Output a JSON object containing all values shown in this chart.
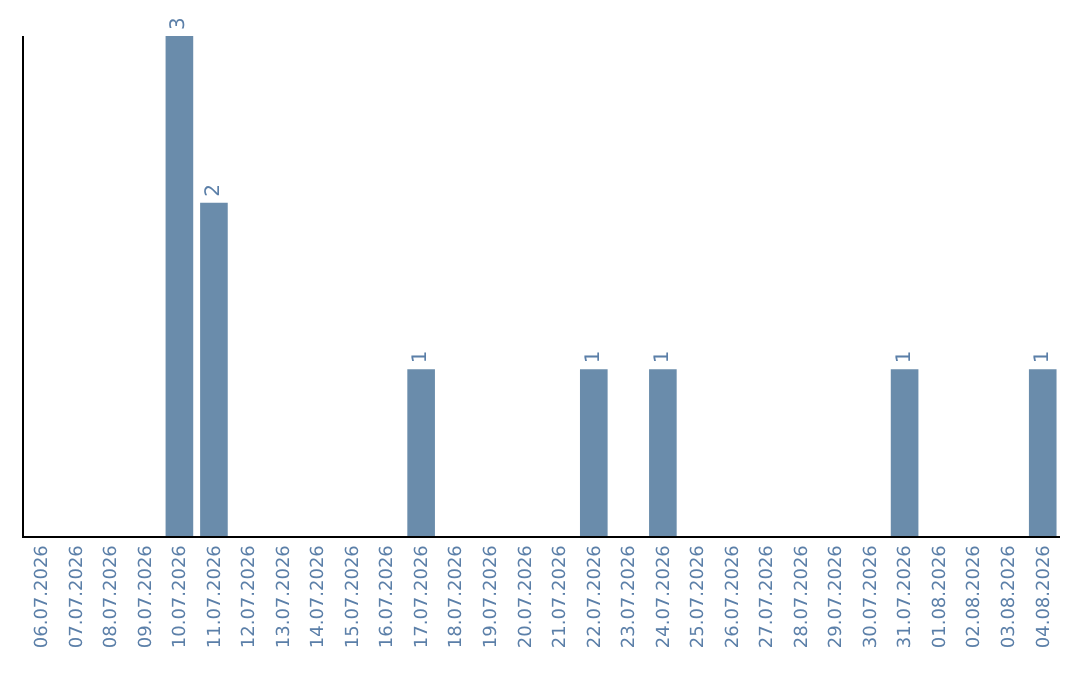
{
  "chart_data": {
    "type": "bar",
    "categories": [
      "06.07.2026",
      "07.07.2026",
      "08.07.2026",
      "09.07.2026",
      "10.07.2026",
      "11.07.2026",
      "12.07.2026",
      "13.07.2026",
      "14.07.2026",
      "15.07.2026",
      "16.07.2026",
      "17.07.2026",
      "18.07.2026",
      "19.07.2026",
      "20.07.2026",
      "21.07.2026",
      "22.07.2026",
      "23.07.2026",
      "24.07.2026",
      "25.07.2026",
      "26.07.2026",
      "27.07.2026",
      "28.07.2026",
      "29.07.2026",
      "30.07.2026",
      "31.07.2026",
      "01.08.2026",
      "02.08.2026",
      "03.08.2026",
      "04.08.2026"
    ],
    "values": [
      0,
      0,
      0,
      0,
      3,
      2,
      0,
      0,
      0,
      0,
      0,
      1,
      0,
      0,
      0,
      0,
      1,
      0,
      1,
      0,
      0,
      0,
      0,
      0,
      0,
      1,
      0,
      0,
      0,
      1
    ],
    "value_labels": [
      null,
      null,
      null,
      null,
      "3",
      "2",
      null,
      null,
      null,
      null,
      null,
      "1",
      null,
      null,
      null,
      null,
      "1",
      null,
      "1",
      null,
      null,
      null,
      null,
      null,
      null,
      "1",
      null,
      null,
      null,
      "1"
    ],
    "color": "#6a8cab"
  }
}
